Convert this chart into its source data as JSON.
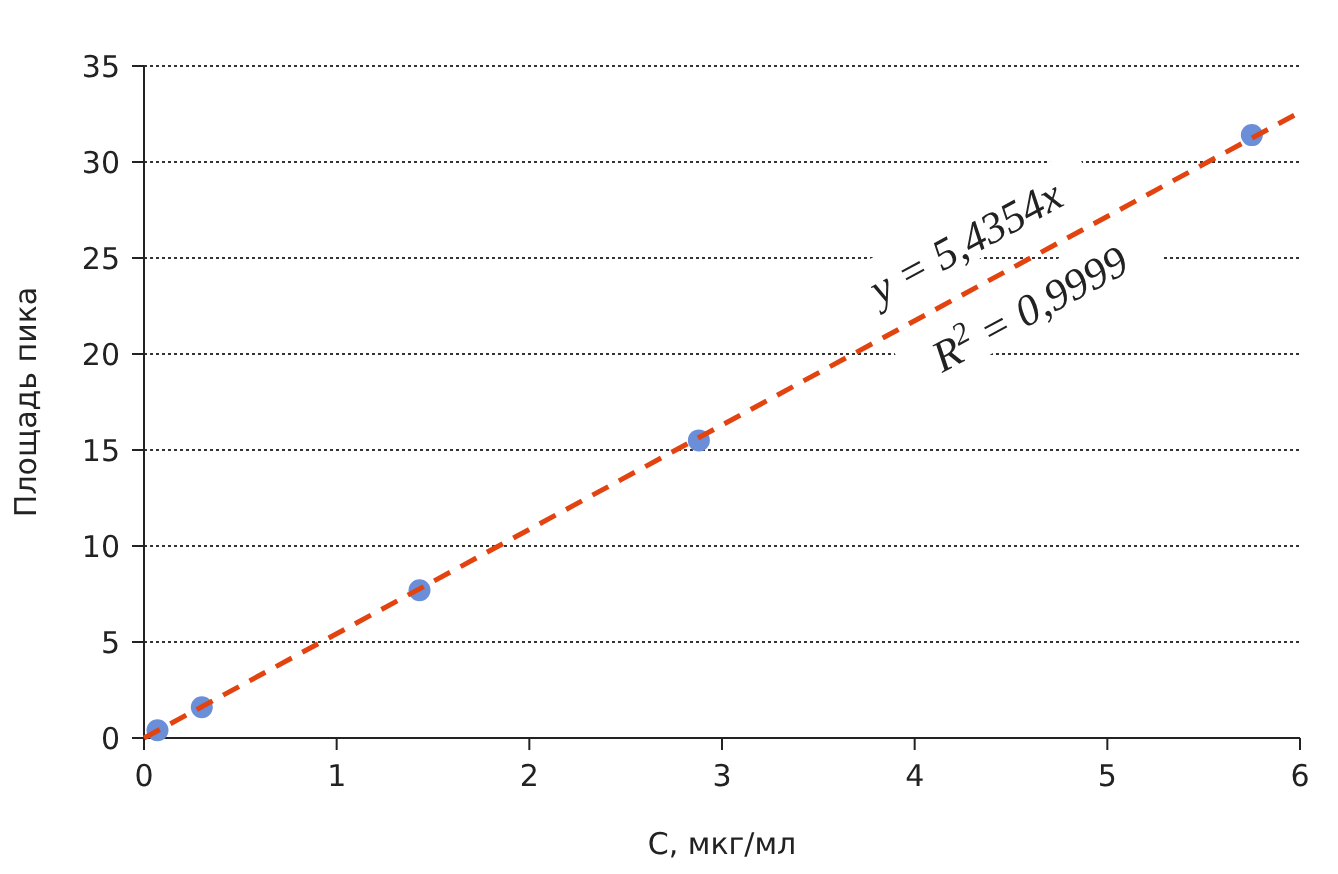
{
  "chart_data": {
    "type": "scatter",
    "xlabel": "C, мкг/мл",
    "ylabel": "Площадь пика",
    "xlim": [
      0,
      6
    ],
    "ylim": [
      0,
      35
    ],
    "xticks": [
      0,
      1,
      2,
      3,
      4,
      5,
      6
    ],
    "yticks": [
      0,
      5,
      10,
      15,
      20,
      25,
      30,
      35
    ],
    "grid": "y",
    "marker": "circle",
    "series": [
      {
        "color": "#6a8fd8",
        "x": [
          0.07,
          0.3,
          1.43,
          2.88,
          5.75
        ],
        "values": [
          0.4,
          1.6,
          7.7,
          15.5,
          31.4
        ]
      },
      {
        "type": "line",
        "color": "#e2430f",
        "line_style": "dashed",
        "marker": "none",
        "x": [
          0,
          6
        ],
        "values": [
          0,
          32.6
        ]
      }
    ],
    "annotations": [
      "y = 5,4354x",
      "R$^{2}$ = 0,9999"
    ]
  }
}
